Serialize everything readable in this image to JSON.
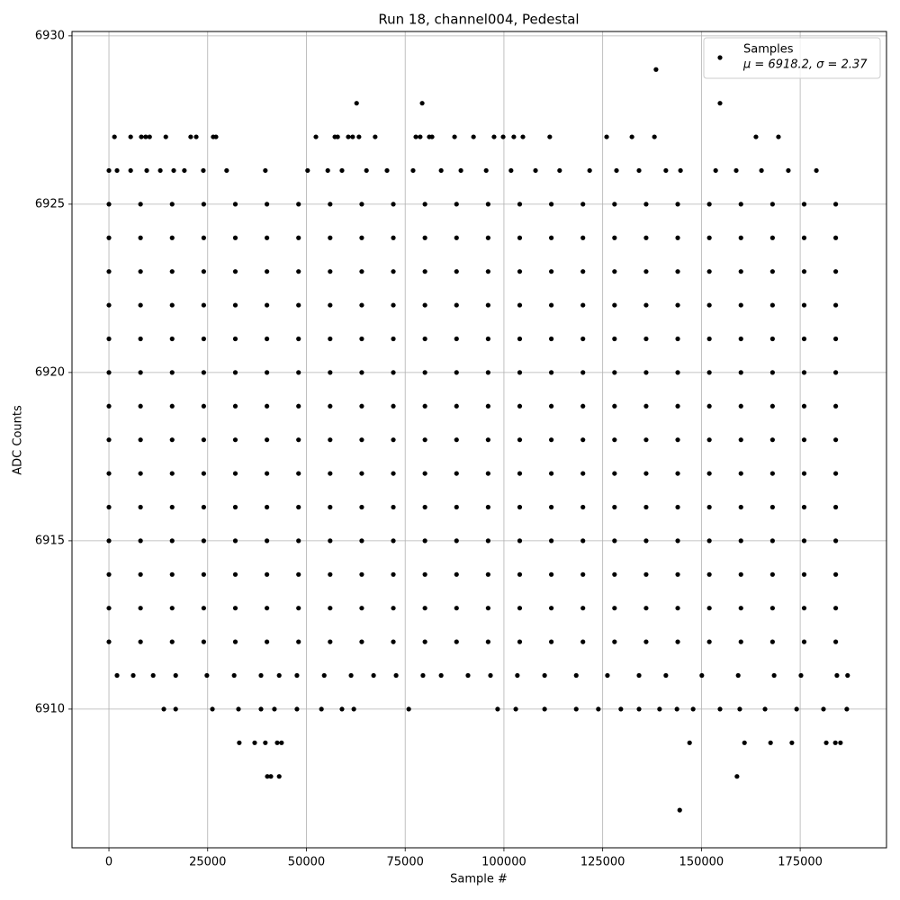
{
  "chart_data": {
    "type": "scatter",
    "title": "Run 18, channel004, Pedestal",
    "x_label": "Sample #",
    "y_label": "ADC Counts",
    "legend_stats": "μ = 6918.2, σ = 2.37",
    "legend": "upper right",
    "grid": true,
    "xlim": [
      -9350,
      196850
    ],
    "ylim": [
      6905.88,
      6930.13
    ],
    "xticks": [
      0,
      25000,
      50000,
      75000,
      100000,
      125000,
      150000,
      175000
    ],
    "yticks": [
      6910,
      6915,
      6920,
      6925,
      6930
    ],
    "series": [
      {
        "name": "Samples",
        "color": "#000000",
        "x": [
          0,
          8000,
          16000,
          24000,
          32000,
          40000,
          48000,
          56000,
          64000,
          72000,
          80000,
          88000,
          96000,
          104000,
          112000,
          120000,
          128000,
          136000,
          144000,
          152000,
          160000,
          168000,
          176000,
          184000,
          0,
          8000,
          16000,
          24000,
          32000,
          40000,
          48000,
          56000,
          64000,
          72000,
          80000,
          88000,
          96000,
          104000,
          112000,
          120000,
          128000,
          136000,
          144000,
          152000,
          160000,
          168000,
          176000,
          184000,
          0,
          8000,
          16000,
          24000,
          32000,
          40000,
          48000,
          56000,
          64000,
          72000,
          80000,
          88000,
          96000,
          104000,
          112000,
          120000,
          128000,
          136000,
          144000,
          152000,
          160000,
          168000,
          176000,
          184000,
          0,
          8000,
          16000,
          24000,
          32000,
          40000,
          48000,
          56000,
          64000,
          72000,
          80000,
          88000,
          96000,
          104000,
          112000,
          120000,
          128000,
          136000,
          144000,
          152000,
          160000,
          168000,
          176000,
          184000,
          0,
          8000,
          16000,
          24000,
          32000,
          40000,
          48000,
          56000,
          64000,
          72000,
          80000,
          88000,
          96000,
          104000,
          112000,
          120000,
          128000,
          136000,
          144000,
          152000,
          160000,
          168000,
          176000,
          184000,
          0,
          8000,
          16000,
          24000,
          32000,
          40000,
          48000,
          56000,
          64000,
          72000,
          80000,
          88000,
          96000,
          104000,
          112000,
          120000,
          128000,
          136000,
          144000,
          152000,
          160000,
          168000,
          176000,
          184000,
          0,
          8000,
          16000,
          24000,
          32000,
          40000,
          48000,
          56000,
          64000,
          72000,
          80000,
          88000,
          96000,
          104000,
          112000,
          120000,
          128000,
          136000,
          144000,
          152000,
          160000,
          168000,
          176000,
          184000,
          0,
          8000,
          16000,
          24000,
          32000,
          40000,
          48000,
          56000,
          64000,
          72000,
          80000,
          88000,
          96000,
          104000,
          112000,
          120000,
          128000,
          136000,
          144000,
          152000,
          160000,
          168000,
          176000,
          184000,
          0,
          8000,
          16000,
          24000,
          32000,
          40000,
          48000,
          56000,
          64000,
          72000,
          80000,
          88000,
          96000,
          104000,
          112000,
          120000,
          128000,
          136000,
          144000,
          152000,
          160000,
          168000,
          176000,
          184000,
          0,
          8000,
          16000,
          24000,
          32000,
          40000,
          48000,
          56000,
          64000,
          72000,
          80000,
          88000,
          96000,
          104000,
          112000,
          120000,
          128000,
          136000,
          144000,
          152000,
          160000,
          168000,
          176000,
          184000,
          0,
          8000,
          16000,
          24000,
          32000,
          40000,
          48000,
          56000,
          64000,
          72000,
          80000,
          88000,
          96000,
          104000,
          112000,
          120000,
          128000,
          136000,
          144000,
          152000,
          160000,
          168000,
          176000,
          184000,
          0,
          8000,
          16000,
          24000,
          32000,
          40000,
          48000,
          56000,
          64000,
          72000,
          80000,
          88000,
          96000,
          104000,
          112000,
          120000,
          128000,
          136000,
          144000,
          152000,
          160000,
          168000,
          176000,
          184000,
          0,
          8000,
          16000,
          24000,
          32000,
          40000,
          48000,
          56000,
          64000,
          72000,
          80000,
          88000,
          96000,
          104000,
          112000,
          120000,
          128000,
          136000,
          144000,
          152000,
          160000,
          168000,
          176000,
          184000,
          0,
          8000,
          16000,
          24000,
          32000,
          40000,
          48000,
          56000,
          64000,
          72000,
          80000,
          88000,
          96000,
          104000,
          112000,
          120000,
          128000,
          136000,
          144000,
          152000,
          160000,
          168000,
          176000,
          184000,
          138500,
          62700,
          79300,
          154700,
          1400,
          5500,
          8200,
          9300,
          10300,
          14400,
          20700,
          22100,
          26400,
          27100,
          52400,
          57200,
          57900,
          60600,
          61700,
          63300,
          67400,
          77700,
          78800,
          81100,
          81800,
          87500,
          92300,
          97500,
          99800,
          102500,
          104800,
          111600,
          126000,
          132400,
          138100,
          163800,
          169500,
          0,
          2050,
          5500,
          9570,
          13000,
          16400,
          19100,
          23900,
          29800,
          39600,
          50300,
          55400,
          59000,
          65200,
          70400,
          77000,
          84100,
          89100,
          95500,
          101800,
          108000,
          114100,
          121700,
          128500,
          134200,
          141000,
          144700,
          153600,
          158800,
          165200,
          172000,
          179100,
          2050,
          6150,
          11200,
          16900,
          24800,
          31700,
          38500,
          43100,
          47600,
          54500,
          61300,
          67000,
          72700,
          79500,
          84100,
          90900,
          96600,
          103400,
          110300,
          118300,
          126200,
          134200,
          141000,
          150100,
          159300,
          168400,
          175200,
          184300,
          187000,
          13900,
          16900,
          26200,
          32800,
          38500,
          41900,
          47600,
          53800,
          59000,
          62000,
          75900,
          98400,
          103000,
          110300,
          118300,
          123900,
          129600,
          134200,
          139400,
          143800,
          147900,
          154700,
          159700,
          166100,
          174100,
          180900,
          186800,
          33000,
          36900,
          39600,
          42600,
          43700,
          147000,
          160900,
          167500,
          172900,
          181600,
          183900,
          185200,
          40100,
          41000,
          43100,
          159000,
          144500
        ],
        "values": [
          6912,
          6912,
          6912,
          6912,
          6912,
          6912,
          6912,
          6912,
          6912,
          6912,
          6912,
          6912,
          6912,
          6912,
          6912,
          6912,
          6912,
          6912,
          6912,
          6912,
          6912,
          6912,
          6912,
          6912,
          6913,
          6913,
          6913,
          6913,
          6913,
          6913,
          6913,
          6913,
          6913,
          6913,
          6913,
          6913,
          6913,
          6913,
          6913,
          6913,
          6913,
          6913,
          6913,
          6913,
          6913,
          6913,
          6913,
          6913,
          6914,
          6914,
          6914,
          6914,
          6914,
          6914,
          6914,
          6914,
          6914,
          6914,
          6914,
          6914,
          6914,
          6914,
          6914,
          6914,
          6914,
          6914,
          6914,
          6914,
          6914,
          6914,
          6914,
          6914,
          6915,
          6915,
          6915,
          6915,
          6915,
          6915,
          6915,
          6915,
          6915,
          6915,
          6915,
          6915,
          6915,
          6915,
          6915,
          6915,
          6915,
          6915,
          6915,
          6915,
          6915,
          6915,
          6915,
          6915,
          6916,
          6916,
          6916,
          6916,
          6916,
          6916,
          6916,
          6916,
          6916,
          6916,
          6916,
          6916,
          6916,
          6916,
          6916,
          6916,
          6916,
          6916,
          6916,
          6916,
          6916,
          6916,
          6916,
          6916,
          6917,
          6917,
          6917,
          6917,
          6917,
          6917,
          6917,
          6917,
          6917,
          6917,
          6917,
          6917,
          6917,
          6917,
          6917,
          6917,
          6917,
          6917,
          6917,
          6917,
          6917,
          6917,
          6917,
          6917,
          6918,
          6918,
          6918,
          6918,
          6918,
          6918,
          6918,
          6918,
          6918,
          6918,
          6918,
          6918,
          6918,
          6918,
          6918,
          6918,
          6918,
          6918,
          6918,
          6918,
          6918,
          6918,
          6918,
          6918,
          6919,
          6919,
          6919,
          6919,
          6919,
          6919,
          6919,
          6919,
          6919,
          6919,
          6919,
          6919,
          6919,
          6919,
          6919,
          6919,
          6919,
          6919,
          6919,
          6919,
          6919,
          6919,
          6919,
          6919,
          6920,
          6920,
          6920,
          6920,
          6920,
          6920,
          6920,
          6920,
          6920,
          6920,
          6920,
          6920,
          6920,
          6920,
          6920,
          6920,
          6920,
          6920,
          6920,
          6920,
          6920,
          6920,
          6920,
          6920,
          6921,
          6921,
          6921,
          6921,
          6921,
          6921,
          6921,
          6921,
          6921,
          6921,
          6921,
          6921,
          6921,
          6921,
          6921,
          6921,
          6921,
          6921,
          6921,
          6921,
          6921,
          6921,
          6921,
          6921,
          6922,
          6922,
          6922,
          6922,
          6922,
          6922,
          6922,
          6922,
          6922,
          6922,
          6922,
          6922,
          6922,
          6922,
          6922,
          6922,
          6922,
          6922,
          6922,
          6922,
          6922,
          6922,
          6922,
          6922,
          6923,
          6923,
          6923,
          6923,
          6923,
          6923,
          6923,
          6923,
          6923,
          6923,
          6923,
          6923,
          6923,
          6923,
          6923,
          6923,
          6923,
          6923,
          6923,
          6923,
          6923,
          6923,
          6923,
          6923,
          6924,
          6924,
          6924,
          6924,
          6924,
          6924,
          6924,
          6924,
          6924,
          6924,
          6924,
          6924,
          6924,
          6924,
          6924,
          6924,
          6924,
          6924,
          6924,
          6924,
          6924,
          6924,
          6924,
          6924,
          6925,
          6925,
          6925,
          6925,
          6925,
          6925,
          6925,
          6925,
          6925,
          6925,
          6925,
          6925,
          6925,
          6925,
          6925,
          6925,
          6925,
          6925,
          6925,
          6925,
          6925,
          6925,
          6925,
          6925,
          6929,
          6928,
          6928,
          6928,
          6927,
          6927,
          6927,
          6927,
          6927,
          6927,
          6927,
          6927,
          6927,
          6927,
          6927,
          6927,
          6927,
          6927,
          6927,
          6927,
          6927,
          6927,
          6927,
          6927,
          6927,
          6927,
          6927,
          6927,
          6927,
          6927,
          6927,
          6927,
          6927,
          6927,
          6927,
          6927,
          6927,
          6926,
          6926,
          6926,
          6926,
          6926,
          6926,
          6926,
          6926,
          6926,
          6926,
          6926,
          6926,
          6926,
          6926,
          6926,
          6926,
          6926,
          6926,
          6926,
          6926,
          6926,
          6926,
          6926,
          6926,
          6926,
          6926,
          6926,
          6926,
          6926,
          6926,
          6926,
          6926,
          6911,
          6911,
          6911,
          6911,
          6911,
          6911,
          6911,
          6911,
          6911,
          6911,
          6911,
          6911,
          6911,
          6911,
          6911,
          6911,
          6911,
          6911,
          6911,
          6911,
          6911,
          6911,
          6911,
          6911,
          6911,
          6911,
          6911,
          6911,
          6911,
          6910,
          6910,
          6910,
          6910,
          6910,
          6910,
          6910,
          6910,
          6910,
          6910,
          6910,
          6910,
          6910,
          6910,
          6910,
          6910,
          6910,
          6910,
          6910,
          6910,
          6910,
          6910,
          6910,
          6910,
          6910,
          6910,
          6910,
          6909,
          6909,
          6909,
          6909,
          6909,
          6909,
          6909,
          6909,
          6909,
          6909,
          6909,
          6909,
          6908,
          6908,
          6908,
          6908,
          6907
        ]
      }
    ]
  }
}
